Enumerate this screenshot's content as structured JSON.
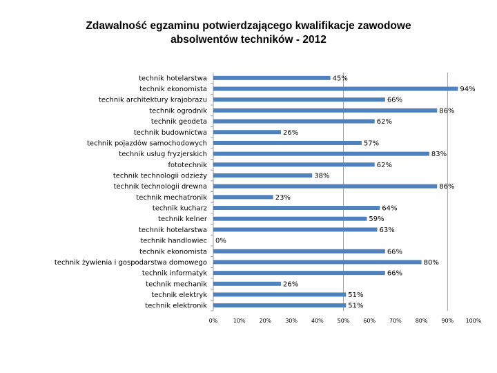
{
  "chart_data": {
    "type": "bar",
    "orientation": "horizontal",
    "title_line1": "Zdawalność egzaminu potwierdzającego kwalifikacje zawodowe",
    "title_line2": "absolwentów techników - 2012",
    "categories": [
      "technik hotelarstwa",
      "technik ekonomista",
      "technik architektury krajobrazu",
      "technik ogrodnik",
      "technik geodeta",
      "technik budownictwa",
      "technik pojazdów samochodowych",
      "technik usług fryzjerskich",
      "fototechnik",
      "technik technologii odzieży",
      "technik technologii drewna",
      "technik mechatronik",
      "technik kucharz",
      "technik kelner",
      "technik hotelarstwa",
      "technik handlowiec",
      "technik ekonomista",
      "technik żywienia i gospodarstwa domowego",
      "technik informatyk",
      "technik mechanik",
      "technik elektryk",
      "technik elektronik"
    ],
    "values": [
      45,
      94,
      66,
      86,
      62,
      26,
      57,
      83,
      62,
      38,
      86,
      23,
      64,
      59,
      63,
      0,
      66,
      80,
      66,
      26,
      51,
      51
    ],
    "data_labels": [
      "45%",
      "94%",
      "66%",
      "86%",
      "62%",
      "26%",
      "57%",
      "83%",
      "62%",
      "38%",
      "86%",
      "23%",
      "64%",
      "59%",
      "63%",
      "0%",
      "66%",
      "80%",
      "66%",
      "26%",
      "51%",
      "51%"
    ],
    "x_ticks": [
      "0%",
      "10%",
      "20%",
      "30%",
      "40%",
      "50%",
      "60%",
      "70%",
      "80%",
      "90%",
      "100%"
    ],
    "xlim": [
      0,
      100
    ],
    "grid": "vertical gridlines at 50% and 90%",
    "bar_color": "#4F81BD",
    "legend": "none"
  }
}
